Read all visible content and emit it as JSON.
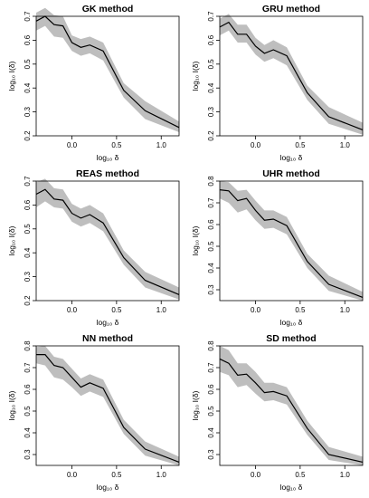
{
  "chart_data": [
    {
      "type": "line",
      "title": "GK method",
      "xlabel": "log₁₀ δ",
      "ylabel": "log₁₀ I(δ)",
      "xlim": [
        -0.4,
        1.2
      ],
      "ylim": [
        0.2,
        0.7
      ],
      "xticks": [
        "0.0",
        "0.5",
        "1.0"
      ],
      "yticks": [
        "0.2",
        "0.3",
        "0.4",
        "0.5",
        "0.6",
        "0.7"
      ],
      "band_color": "#bebebe",
      "line_color": "#000000",
      "x": [
        -0.4,
        -0.3,
        -0.2,
        -0.1,
        0.0,
        0.1,
        0.2,
        0.35,
        0.58,
        0.82,
        1.2
      ],
      "series": [
        {
          "values": [
            0.68,
            0.7,
            0.665,
            0.66,
            0.59,
            0.57,
            0.58,
            0.555,
            0.39,
            0.305,
            0.235
          ]
        }
      ],
      "band_lower": [
        0.64,
        0.66,
        0.615,
        0.61,
        0.555,
        0.535,
        0.545,
        0.515,
        0.36,
        0.27,
        0.215
      ],
      "band_upper": [
        0.715,
        0.735,
        0.705,
        0.7,
        0.62,
        0.605,
        0.615,
        0.59,
        0.42,
        0.345,
        0.26
      ]
    },
    {
      "type": "line",
      "title": "GRU method",
      "xlabel": "log₁₀ δ",
      "ylabel": "log₁₀ I(δ)",
      "xlim": [
        -0.4,
        1.2
      ],
      "ylim": [
        0.2,
        0.7
      ],
      "xticks": [
        "0.0",
        "0.5",
        "1.0"
      ],
      "yticks": [
        "0.2",
        "0.3",
        "0.4",
        "0.5",
        "0.6",
        "0.7"
      ],
      "band_color": "#bebebe",
      "line_color": "#000000",
      "x": [
        -0.4,
        -0.3,
        -0.2,
        -0.1,
        0.0,
        0.1,
        0.2,
        0.35,
        0.58,
        0.82,
        1.2
      ],
      "series": [
        {
          "values": [
            0.655,
            0.675,
            0.625,
            0.625,
            0.575,
            0.545,
            0.56,
            0.535,
            0.38,
            0.28,
            0.225
          ]
        }
      ],
      "band_lower": [
        0.62,
        0.64,
        0.59,
        0.59,
        0.54,
        0.51,
        0.525,
        0.495,
        0.35,
        0.25,
        0.205
      ],
      "band_upper": [
        0.69,
        0.71,
        0.665,
        0.665,
        0.61,
        0.58,
        0.6,
        0.57,
        0.41,
        0.32,
        0.255
      ]
    },
    {
      "type": "line",
      "title": "REAS method",
      "xlabel": "log₁₀ δ",
      "ylabel": "log₁₀ I(δ)",
      "xlim": [
        -0.4,
        1.2
      ],
      "ylim": [
        0.2,
        0.7
      ],
      "xticks": [
        "0.0",
        "0.5",
        "1.0"
      ],
      "yticks": [
        "0.2",
        "0.3",
        "0.4",
        "0.5",
        "0.6",
        "0.7"
      ],
      "band_color": "#bebebe",
      "line_color": "#000000",
      "x": [
        -0.4,
        -0.3,
        -0.2,
        -0.1,
        0.0,
        0.1,
        0.2,
        0.35,
        0.58,
        0.82,
        1.2
      ],
      "series": [
        {
          "values": [
            0.645,
            0.665,
            0.625,
            0.62,
            0.565,
            0.545,
            0.56,
            0.525,
            0.38,
            0.285,
            0.225
          ]
        }
      ],
      "band_lower": [
        0.59,
        0.615,
        0.59,
        0.585,
        0.53,
        0.51,
        0.525,
        0.49,
        0.35,
        0.255,
        0.205
      ],
      "band_upper": [
        0.695,
        0.71,
        0.67,
        0.665,
        0.605,
        0.585,
        0.6,
        0.565,
        0.41,
        0.32,
        0.255
      ]
    },
    {
      "type": "line",
      "title": "UHR method",
      "xlabel": "log₁₀ δ",
      "ylabel": "log₁₀ I(δ)",
      "xlim": [
        -0.4,
        1.2
      ],
      "ylim": [
        0.25,
        0.8
      ],
      "xticks": [
        "0.0",
        "0.5",
        "1.0"
      ],
      "yticks": [
        "0.3",
        "0.4",
        "0.5",
        "0.6",
        "0.7",
        "0.8"
      ],
      "band_color": "#bebebe",
      "line_color": "#000000",
      "x": [
        -0.4,
        -0.3,
        -0.2,
        -0.1,
        0.0,
        0.1,
        0.2,
        0.35,
        0.58,
        0.82,
        1.2
      ],
      "series": [
        {
          "values": [
            0.76,
            0.755,
            0.71,
            0.72,
            0.665,
            0.62,
            0.625,
            0.595,
            0.43,
            0.325,
            0.265
          ]
        }
      ],
      "band_lower": [
        0.72,
        0.7,
        0.655,
        0.67,
        0.62,
        0.58,
        0.585,
        0.555,
        0.4,
        0.295,
        0.25
      ],
      "band_upper": [
        0.8,
        0.795,
        0.755,
        0.76,
        0.71,
        0.665,
        0.665,
        0.635,
        0.465,
        0.365,
        0.29
      ]
    },
    {
      "type": "line",
      "title": "NN method",
      "xlabel": "log₁₀ δ",
      "ylabel": "log₁₀ I(δ)",
      "xlim": [
        -0.4,
        1.2
      ],
      "ylim": [
        0.25,
        0.8
      ],
      "xticks": [
        "0.0",
        "0.5",
        "1.0"
      ],
      "yticks": [
        "0.3",
        "0.4",
        "0.5",
        "0.6",
        "0.7",
        "0.8"
      ],
      "band_color": "#bebebe",
      "line_color": "#000000",
      "x": [
        -0.4,
        -0.3,
        -0.2,
        -0.1,
        0.0,
        0.1,
        0.2,
        0.35,
        0.58,
        0.82,
        1.2
      ],
      "series": [
        {
          "values": [
            0.76,
            0.76,
            0.71,
            0.7,
            0.655,
            0.61,
            0.63,
            0.605,
            0.425,
            0.325,
            0.265
          ]
        }
      ],
      "band_lower": [
        0.72,
        0.71,
        0.655,
        0.645,
        0.61,
        0.57,
        0.59,
        0.565,
        0.395,
        0.295,
        0.25
      ],
      "band_upper": [
        0.795,
        0.8,
        0.75,
        0.74,
        0.695,
        0.65,
        0.67,
        0.645,
        0.46,
        0.36,
        0.29
      ]
    },
    {
      "type": "line",
      "title": "SD method",
      "xlabel": "log₁₀ δ",
      "ylabel": "log₁₀ I(δ)",
      "xlim": [
        -0.4,
        1.2
      ],
      "ylim": [
        0.25,
        0.8
      ],
      "xticks": [
        "0.0",
        "0.5",
        "1.0"
      ],
      "yticks": [
        "0.3",
        "0.4",
        "0.5",
        "0.6",
        "0.7",
        "0.8"
      ],
      "band_color": "#bebebe",
      "line_color": "#000000",
      "x": [
        -0.4,
        -0.3,
        -0.2,
        -0.1,
        0.0,
        0.1,
        0.2,
        0.35,
        0.58,
        0.82,
        1.2
      ],
      "series": [
        {
          "values": [
            0.74,
            0.72,
            0.665,
            0.67,
            0.63,
            0.585,
            0.59,
            0.57,
            0.42,
            0.3,
            0.265
          ]
        }
      ],
      "band_lower": [
        0.68,
        0.665,
        0.61,
        0.62,
        0.58,
        0.545,
        0.55,
        0.53,
        0.39,
        0.275,
        0.25
      ],
      "band_upper": [
        0.8,
        0.78,
        0.72,
        0.72,
        0.68,
        0.63,
        0.63,
        0.61,
        0.455,
        0.335,
        0.29
      ]
    }
  ]
}
